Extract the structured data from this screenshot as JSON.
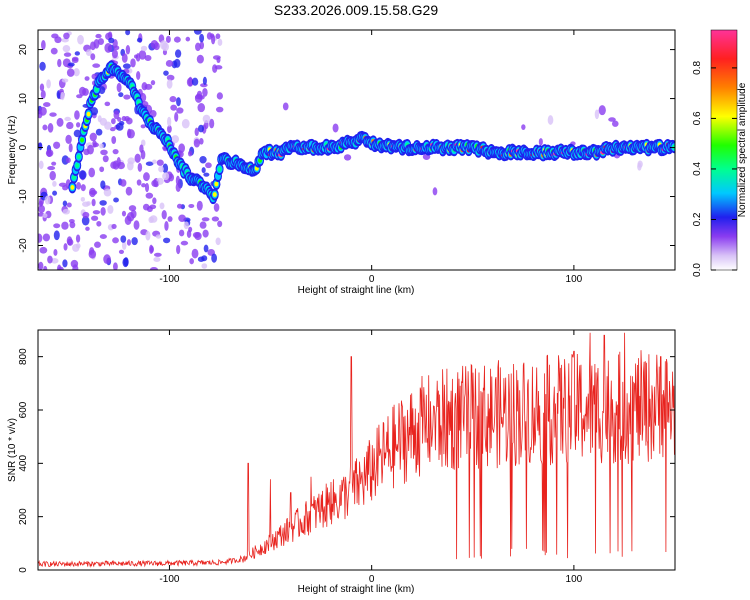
{
  "title": "S233.2026.009.15.58.G29",
  "colors": {
    "snr_line": "#e8231e",
    "axis": "#000000",
    "colormap": [
      "#ffffff",
      "#c9a8f5",
      "#8a3cf0",
      "#2222ee",
      "#00d0ff",
      "#00ff80",
      "#ffff00",
      "#ff8000",
      "#ff2020",
      "#ff3399"
    ]
  },
  "chart_data": [
    {
      "type": "heatmap",
      "xlabel": "Height of straight line (km)",
      "ylabel": "Frequency (Hz)",
      "xlim": [
        -165,
        150
      ],
      "ylim": [
        -25,
        24
      ],
      "xticks": [
        -100,
        0,
        100
      ],
      "yticks": [
        -20,
        -10,
        0,
        10,
        20
      ],
      "colorbar": {
        "label": "Normalized spectral amplitude",
        "range": [
          0,
          0.95
        ],
        "ticks": [
          0.0,
          0.2,
          0.4,
          0.6,
          0.8
        ]
      },
      "ridge": [
        [
          -148,
          -8
        ],
        [
          -143,
          2
        ],
        [
          -139,
          9
        ],
        [
          -134,
          14
        ],
        [
          -130,
          16
        ],
        [
          -126,
          16
        ],
        [
          -122,
          14
        ],
        [
          -118,
          12
        ],
        [
          -114,
          8
        ],
        [
          -110,
          5
        ],
        [
          -106,
          4
        ],
        [
          -102,
          2
        ],
        [
          -98,
          -1
        ],
        [
          -94,
          -4
        ],
        [
          -90,
          -6
        ],
        [
          -86,
          -7
        ],
        [
          -82,
          -8
        ],
        [
          -78,
          -10
        ],
        [
          -74,
          -2
        ],
        [
          -70,
          -3
        ],
        [
          -66,
          -3
        ],
        [
          -62,
          -4
        ],
        [
          -58,
          -5
        ],
        [
          -54,
          -1
        ],
        [
          -50,
          -1
        ],
        [
          -45,
          -1
        ],
        [
          -40,
          0
        ],
        [
          -30,
          0
        ],
        [
          -20,
          0
        ],
        [
          -10,
          1
        ],
        [
          -5,
          2
        ],
        [
          0,
          1
        ],
        [
          10,
          0
        ],
        [
          20,
          0
        ],
        [
          30,
          0
        ],
        [
          40,
          0
        ],
        [
          50,
          0
        ],
        [
          60,
          -1
        ],
        [
          70,
          -1
        ],
        [
          80,
          -1
        ],
        [
          90,
          -1
        ],
        [
          100,
          -1
        ],
        [
          110,
          -1
        ],
        [
          120,
          0
        ],
        [
          130,
          0
        ],
        [
          140,
          0
        ],
        [
          150,
          0
        ]
      ]
    },
    {
      "type": "line",
      "xlabel": "Height of straight line (km)",
      "ylabel": "SNR (10 * v/v)",
      "xlim": [
        -165,
        150
      ],
      "ylim": [
        0,
        900
      ],
      "xticks": [
        -100,
        0,
        100
      ],
      "yticks": [
        0,
        200,
        400,
        600,
        800
      ],
      "trend": [
        [
          -165,
          22
        ],
        [
          -100,
          25
        ],
        [
          -75,
          28
        ],
        [
          -64,
          40
        ],
        [
          -55,
          80
        ],
        [
          -45,
          130
        ],
        [
          -35,
          180
        ],
        [
          -25,
          230
        ],
        [
          -15,
          270
        ],
        [
          -5,
          330
        ],
        [
          5,
          420
        ],
        [
          15,
          490
        ],
        [
          25,
          540
        ],
        [
          35,
          560
        ],
        [
          50,
          575
        ],
        [
          70,
          590
        ],
        [
          90,
          600
        ],
        [
          110,
          605
        ],
        [
          130,
          610
        ],
        [
          150,
          615
        ]
      ],
      "spikes": [
        [
          -61,
          400
        ],
        [
          -50,
          340
        ],
        [
          -40,
          290
        ],
        [
          -10,
          800
        ],
        [
          -30,
          350
        ],
        [
          -20,
          330
        ],
        [
          108,
          890
        ],
        [
          125,
          890
        ],
        [
          143,
          800
        ],
        [
          115,
          880
        ],
        [
          100,
          820
        ],
        [
          88,
          770
        ]
      ]
    }
  ]
}
